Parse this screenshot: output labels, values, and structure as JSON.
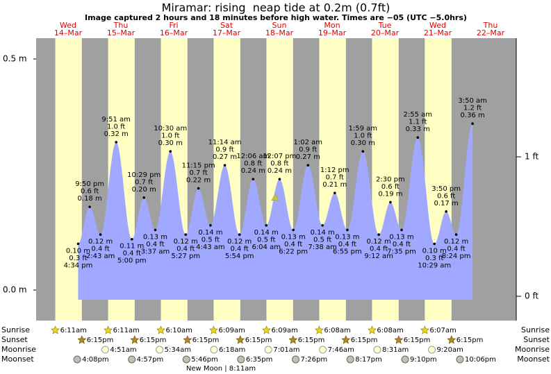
{
  "chart_data": {
    "type": "area",
    "title": "Miramar: rising  neap tide at 0.2m (0.7ft)",
    "subtitle": "Image captured 2 hours and 18 minutes before high water. Times are −05 (UTC −5.0hrs)",
    "days": [
      {
        "weekday": "Wed",
        "date": "14–Mar"
      },
      {
        "weekday": "Thu",
        "date": "15–Mar"
      },
      {
        "weekday": "Fri",
        "date": "16–Mar"
      },
      {
        "weekday": "Sat",
        "date": "17–Mar"
      },
      {
        "weekday": "Sun",
        "date": "18–Mar"
      },
      {
        "weekday": "Mon",
        "date": "19–Mar"
      },
      {
        "weekday": "Tue",
        "date": "20–Mar"
      },
      {
        "weekday": "Wed",
        "date": "21–Mar"
      },
      {
        "weekday": "Thu",
        "date": "22–Mar"
      }
    ],
    "x": [
      "4:34 pm",
      "9:50 pm",
      "2:43 am",
      "9:51 am",
      "5:00 pm",
      "10:29 pm",
      "3:37 am",
      "10:30 am",
      "5:27 pm",
      "11:15 pm",
      "4:43 am",
      "11:14 am",
      "5:54 pm",
      "12:06 am",
      "6:04 am",
      "12:07 pm",
      "6:22 pm",
      "1:02 am",
      "7:38 am",
      "1:12 pm",
      "6:55 pm",
      "1:59 am",
      "9:12 am",
      "2:30 pm",
      "7:35 pm",
      "2:55 am",
      "10:29 am",
      "3:50 pm",
      "8:24 pm",
      "3:50 am"
    ],
    "values": [
      0.1,
      0.18,
      0.12,
      0.32,
      0.11,
      0.2,
      0.13,
      0.3,
      0.12,
      0.22,
      0.14,
      0.27,
      0.12,
      0.24,
      0.14,
      0.24,
      0.13,
      0.27,
      0.14,
      0.21,
      0.13,
      0.3,
      0.12,
      0.19,
      0.13,
      0.33,
      0.1,
      0.17,
      0.12,
      0.36
    ],
    "value_labels": [
      "0.10 m",
      "0.18 m",
      "0.12 m",
      "0.32 m",
      "0.11 m",
      "0.20 m",
      "0.13 m",
      "0.30 m",
      "0.12 m",
      "0.22 m",
      "0.14 m",
      "0.27 m",
      "0.12 m",
      "0.24 m",
      "0.14 m",
      "0.24 m",
      "0.13 m",
      "0.27 m",
      "0.14 m",
      "0.21 m",
      "0.13 m",
      "0.30 m",
      "0.12 m",
      "0.19 m",
      "0.13 m",
      "0.33 m",
      "0.10 m",
      "0.17 m",
      "0.12 m",
      "0.36 m"
    ],
    "ft_labels": [
      "0.3 ft",
      "0.6 ft",
      "0.4 ft",
      "1.0 ft",
      "0.4 ft",
      "0.7 ft",
      "0.4 ft",
      "1.0 ft",
      "0.4 ft",
      "0.7 ft",
      "0.5 ft",
      "0.9 ft",
      "0.4 ft",
      "0.8 ft",
      "0.5 ft",
      "0.8 ft",
      "0.4 ft",
      "0.9 ft",
      "0.5 ft",
      "0.7 ft",
      "0.4 ft",
      "1.0 ft",
      "0.4 ft",
      "0.6 ft",
      "0.4 ft",
      "1.1 ft",
      "0.3 ft",
      "0.6 ft",
      "0.4 ft",
      "1.2 ft"
    ],
    "color": "#a0a8ff",
    "current_level": 0.2,
    "ylim": [
      -0.021,
      0.545
    ],
    "yticks": [
      {
        "value": 0,
        "label": "0.0 m"
      },
      {
        "value": 0.5,
        "label": "0.5 m"
      }
    ],
    "y2lim": [
      -0.025,
      1.851
    ],
    "y2ticks": [
      {
        "value": 0,
        "label": "0 ft"
      },
      {
        "value": 1,
        "label": "1 ft"
      }
    ],
    "almanac_rows": [
      "Sunrise",
      "Sunset",
      "Moonrise",
      "Moonset"
    ],
    "sunrise": [
      "6:11am",
      "6:11am",
      "6:10am",
      "6:09am",
      "6:09am",
      "6:08am",
      "6:08am",
      "6:07am",
      null
    ],
    "sunset": [
      "6:15pm",
      "6:15pm",
      "6:15pm",
      "6:15pm",
      "6:15pm",
      "6:15pm",
      "6:15pm",
      "6:15pm",
      null
    ],
    "moonrise": [
      null,
      "4:51am",
      "5:34am",
      "6:18am",
      "7:01am",
      "7:46am",
      "8:31am",
      "9:20am",
      null
    ],
    "moonset": [
      "4:08pm",
      "4:57pm",
      "5:46pm",
      "6:35pm",
      "7:26pm",
      "8:17pm",
      "9:10pm",
      "10:06pm",
      null
    ],
    "moon_phase": "New Moon | 8:11am"
  }
}
